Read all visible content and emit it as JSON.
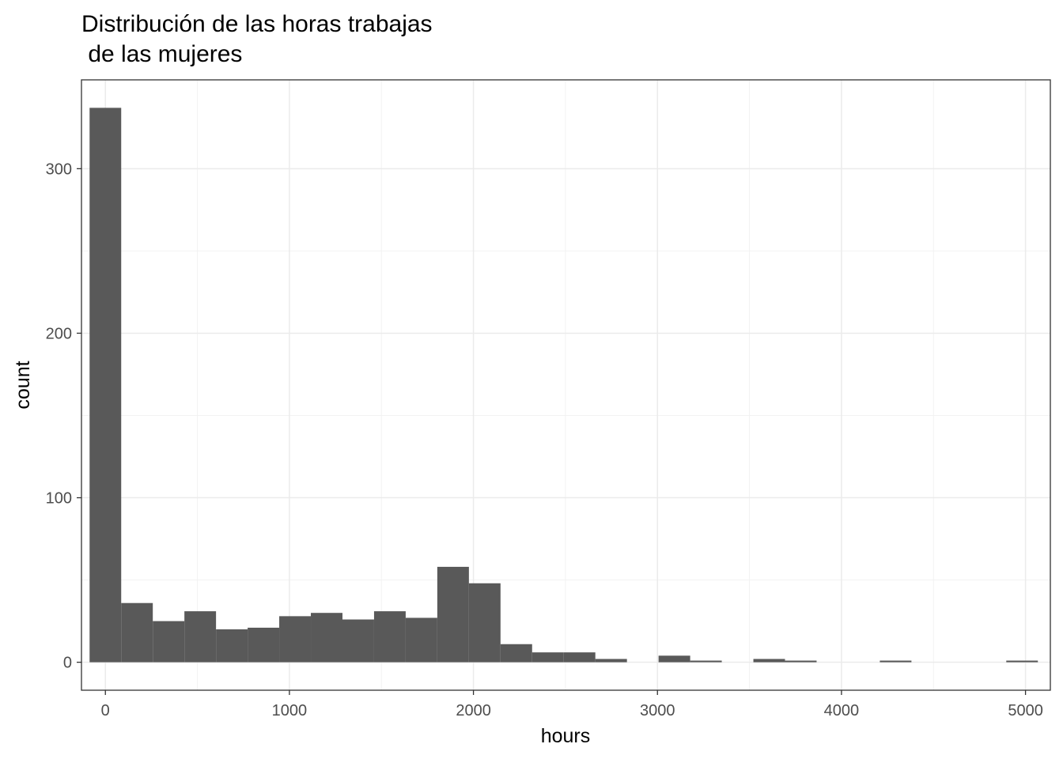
{
  "chart_data": {
    "type": "bar",
    "title_line1": "Distribución de las horas trabajas",
    "title_line2": " de las mujeres",
    "xlabel": "hours",
    "ylabel": "count",
    "xlim": [
      -130,
      5135
    ],
    "ylim": [
      -17,
      354
    ],
    "x_ticks": [
      0,
      1000,
      2000,
      3000,
      4000,
      5000
    ],
    "x_tick_labels": [
      "0",
      "1000",
      "2000",
      "3000",
      "4000",
      "5000"
    ],
    "x_minor_ticks": [
      500,
      1500,
      2500,
      3500,
      4500
    ],
    "y_ticks": [
      0,
      100,
      200,
      300
    ],
    "y_tick_labels": [
      "0",
      "100",
      "200",
      "300"
    ],
    "y_minor_ticks": [
      50,
      150,
      250
    ],
    "grid": true,
    "bar_color": "#595959",
    "bins": [
      {
        "x0": -85.9,
        "x1": 85.9,
        "count": 337
      },
      {
        "x0": 85.9,
        "x1": 257.6,
        "count": 36
      },
      {
        "x0": 257.6,
        "x1": 429.4,
        "count": 25
      },
      {
        "x0": 429.4,
        "x1": 601.2,
        "count": 31
      },
      {
        "x0": 601.2,
        "x1": 773.0,
        "count": 20
      },
      {
        "x0": 773.0,
        "x1": 944.7,
        "count": 21
      },
      {
        "x0": 944.7,
        "x1": 1116.5,
        "count": 28
      },
      {
        "x0": 1116.5,
        "x1": 1288.3,
        "count": 30
      },
      {
        "x0": 1288.3,
        "x1": 1460.0,
        "count": 26
      },
      {
        "x0": 1460.0,
        "x1": 1631.8,
        "count": 31
      },
      {
        "x0": 1631.8,
        "x1": 1803.6,
        "count": 27
      },
      {
        "x0": 1803.6,
        "x1": 1975.4,
        "count": 58
      },
      {
        "x0": 1975.4,
        "x1": 2147.1,
        "count": 48
      },
      {
        "x0": 2147.1,
        "x1": 2318.9,
        "count": 11
      },
      {
        "x0": 2318.9,
        "x1": 2490.7,
        "count": 6
      },
      {
        "x0": 2490.7,
        "x1": 2662.4,
        "count": 6
      },
      {
        "x0": 2662.4,
        "x1": 2834.2,
        "count": 2
      },
      {
        "x0": 2834.2,
        "x1": 3006.0,
        "count": 0
      },
      {
        "x0": 3006.0,
        "x1": 3177.8,
        "count": 4
      },
      {
        "x0": 3177.8,
        "x1": 3349.5,
        "count": 1
      },
      {
        "x0": 3349.5,
        "x1": 3521.3,
        "count": 0
      },
      {
        "x0": 3521.3,
        "x1": 3693.1,
        "count": 2
      },
      {
        "x0": 3693.1,
        "x1": 3864.8,
        "count": 1
      },
      {
        "x0": 3864.8,
        "x1": 4036.6,
        "count": 0
      },
      {
        "x0": 4036.6,
        "x1": 4208.4,
        "count": 0
      },
      {
        "x0": 4208.4,
        "x1": 4380.2,
        "count": 1
      },
      {
        "x0": 4380.2,
        "x1": 4551.9,
        "count": 0
      },
      {
        "x0": 4551.9,
        "x1": 4723.7,
        "count": 0
      },
      {
        "x0": 4723.7,
        "x1": 4895.5,
        "count": 0
      },
      {
        "x0": 4895.5,
        "x1": 5067.2,
        "count": 1
      }
    ]
  }
}
